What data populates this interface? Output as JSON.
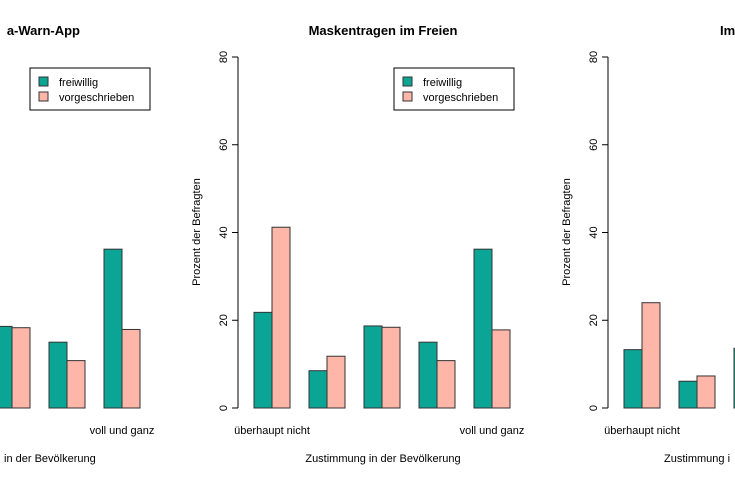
{
  "chart_data": {
    "type": "bar",
    "ylabel": "Prozent der Befragten",
    "xlabel": "Zustimmung in der Bevölkerung",
    "ylim": [
      0,
      80
    ],
    "yticks": [
      0,
      20,
      40,
      60,
      80
    ],
    "category_labels": [
      "überhaupt nicht",
      "",
      "",
      "",
      "voll und ganz"
    ],
    "legend": {
      "position": "top-right",
      "entries": [
        "freiwillig",
        "vorgeschrieben"
      ]
    },
    "colors": {
      "freiwillig": "#0ba596",
      "vorgeschrieben": "#fdb6a8"
    },
    "panels": [
      {
        "title": "a-Warn-App",
        "xlabel_visible": "in der Bevölkerung",
        "series": [
          {
            "name": "freiwillig",
            "values": [
              null,
              null,
              18.6,
              15.0,
              36.2
            ]
          },
          {
            "name": "vorgeschrieben",
            "values": [
              null,
              null,
              18.3,
              10.8,
              17.9
            ]
          }
        ]
      },
      {
        "title": "Maskentragen im Freien",
        "series": [
          {
            "name": "freiwillig",
            "values": [
              21.8,
              8.5,
              18.7,
              15.0,
              36.2
            ]
          },
          {
            "name": "vorgeschrieben",
            "values": [
              41.2,
              11.8,
              18.4,
              10.8,
              17.8
            ]
          }
        ]
      },
      {
        "title": "Im",
        "xlabel_visible": "Zustimmung i",
        "series": [
          {
            "name": "freiwillig",
            "values": [
              13.3,
              6.1,
              13.6,
              null,
              null
            ]
          },
          {
            "name": "vorgeschrieben",
            "values": [
              24.0,
              7.3,
              null,
              null,
              null
            ]
          }
        ]
      }
    ]
  }
}
